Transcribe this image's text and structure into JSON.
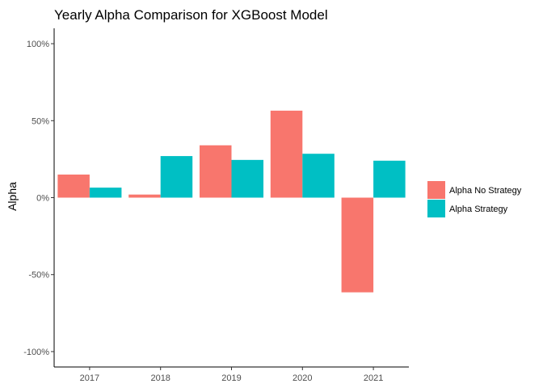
{
  "chart_data": {
    "type": "bar",
    "title": "Yearly Alpha Comparison for XGBoost Model",
    "xlabel": "",
    "ylabel": "Alpha",
    "categories": [
      "2017",
      "2018",
      "2019",
      "2020",
      "2021"
    ],
    "series": [
      {
        "name": "Alpha No Strategy",
        "color": "#F8766D",
        "values": [
          15,
          2,
          34,
          56.5,
          -61.5
        ]
      },
      {
        "name": "Alpha Strategy",
        "color": "#00BFC4",
        "values": [
          6.5,
          27,
          24.5,
          28.5,
          24
        ]
      }
    ],
    "ylim": [
      -110,
      110
    ],
    "yticks": [
      -100,
      -50,
      0,
      50,
      100
    ],
    "ytick_labels": [
      "-100%",
      "-50%",
      "0%",
      "50%",
      "100%"
    ],
    "grid": false,
    "legend_position": "right"
  }
}
